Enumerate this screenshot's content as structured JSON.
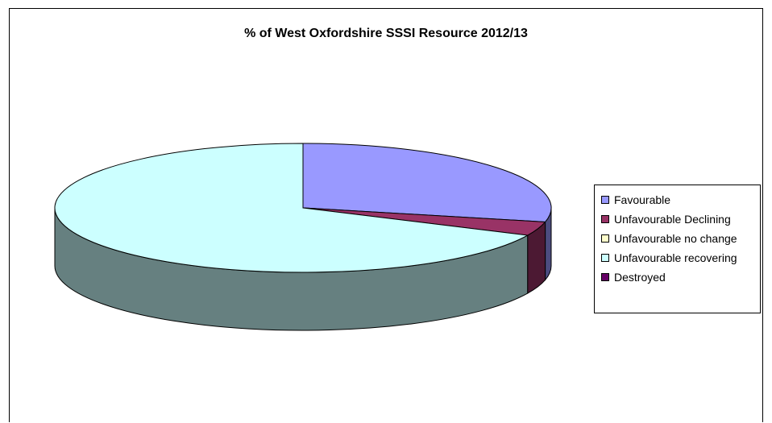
{
  "chart_data": {
    "type": "pie",
    "style": "3d",
    "title": "% of West Oxfordshire SSSI Resource 2012/13",
    "legend_position": "right",
    "categories": [
      "Favourable",
      "Unfavourable Declining",
      "Unfavourable no change",
      "Unfavourable recovering",
      "Destroyed"
    ],
    "values": [
      28.5,
      3.5,
      0,
      68,
      0
    ],
    "colors": [
      "#9999ff",
      "#993366",
      "#ffffcc",
      "#ccffff",
      "#660066"
    ],
    "side_colors": [
      "#4c4c80",
      "#4c1933",
      "#808066",
      "#668080",
      "#330033"
    ]
  }
}
